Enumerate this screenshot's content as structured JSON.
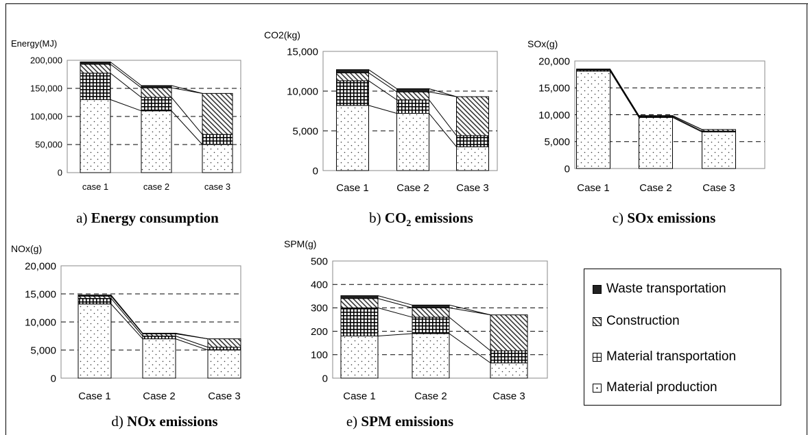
{
  "legend": [
    {
      "key": "waste",
      "label": "Waste transportation",
      "pattern": "solid-dark"
    },
    {
      "key": "construction",
      "label": "Construction",
      "pattern": "diagonal-hatch"
    },
    {
      "key": "transport",
      "label": "Material transportation",
      "pattern": "grid"
    },
    {
      "key": "production",
      "label": "Material production",
      "pattern": "dots"
    }
  ],
  "chart_data": [
    {
      "type": "bar",
      "stacked": true,
      "ylabel": "Energy(MJ)",
      "caption_prefix": "a) ",
      "caption_bold": "Energy consumption",
      "categories": [
        "case 1",
        "case 2",
        "case 3"
      ],
      "ylim": [
        0,
        200000
      ],
      "yticks": [
        "0",
        "50,000",
        "100,000",
        "150,000",
        "200,000"
      ],
      "series": [
        {
          "name": "Material production",
          "values": [
            130000,
            110000,
            50000
          ]
        },
        {
          "name": "Material transportation",
          "values": [
            47000,
            24000,
            18000
          ]
        },
        {
          "name": "Construction",
          "values": [
            16000,
            17000,
            73000
          ]
        },
        {
          "name": "Waste transportation",
          "values": [
            4000,
            4000,
            0
          ]
        }
      ]
    },
    {
      "type": "bar",
      "stacked": true,
      "ylabel": "CO2(kg)",
      "caption_prefix": "b) ",
      "caption_bold": "CO2 emissions",
      "categories": [
        "Case 1",
        "Case 2",
        "Case 3"
      ],
      "ylim": [
        0,
        15000
      ],
      "yticks": [
        "0",
        "5,000",
        "10,000",
        "15,000"
      ],
      "series": [
        {
          "name": "Material production",
          "values": [
            8200,
            7200,
            3000
          ]
        },
        {
          "name": "Material transportation",
          "values": [
            3100,
            1700,
            1400
          ]
        },
        {
          "name": "Construction",
          "values": [
            1000,
            1000,
            4900
          ]
        },
        {
          "name": "Waste transportation",
          "values": [
            400,
            400,
            0
          ]
        }
      ]
    },
    {
      "type": "bar",
      "stacked": true,
      "ylabel": "SOx(g)",
      "caption_prefix": "c) ",
      "caption_bold": "SOx emissions",
      "categories": [
        "Case 1",
        "Case 2",
        "Case 3"
      ],
      "ylim": [
        0,
        20000
      ],
      "yticks": [
        "0",
        "5,000",
        "10,000",
        "15,000",
        "20,000"
      ],
      "series": [
        {
          "name": "Material production",
          "values": [
            18100,
            9500,
            6800
          ]
        },
        {
          "name": "Material transportation",
          "values": [
            200,
            150,
            150
          ]
        },
        {
          "name": "Construction",
          "values": [
            100,
            150,
            300
          ]
        },
        {
          "name": "Waste transportation",
          "values": [
            100,
            50,
            0
          ]
        }
      ]
    },
    {
      "type": "bar",
      "stacked": true,
      "ylabel": "NOx(g)",
      "caption_prefix": "d) ",
      "caption_bold": "NOx emissions",
      "categories": [
        "Case 1",
        "Case 2",
        "Case 3"
      ],
      "ylim": [
        0,
        20000
      ],
      "yticks": [
        "0",
        "5,000",
        "10,000",
        "15,000",
        "20,000"
      ],
      "series": [
        {
          "name": "Material production",
          "values": [
            13200,
            7000,
            5000
          ]
        },
        {
          "name": "Material transportation",
          "values": [
            1000,
            500,
            500
          ]
        },
        {
          "name": "Construction",
          "values": [
            400,
            400,
            1500
          ]
        },
        {
          "name": "Waste transportation",
          "values": [
            200,
            100,
            0
          ]
        }
      ]
    },
    {
      "type": "bar",
      "stacked": true,
      "ylabel": "SPM(g)",
      "caption_prefix": "e) ",
      "caption_bold": "SPM emissions",
      "categories": [
        "Case 1",
        "Case 2",
        "Case 3"
      ],
      "ylim": [
        0,
        500
      ],
      "yticks": [
        "0",
        "100",
        "200",
        "300",
        "400",
        "500"
      ],
      "series": [
        {
          "name": "Material production",
          "values": [
            180,
            190,
            65
          ]
        },
        {
          "name": "Material transportation",
          "values": [
            120,
            70,
            52
          ]
        },
        {
          "name": "Construction",
          "values": [
            40,
            40,
            153
          ]
        },
        {
          "name": "Waste transportation",
          "values": [
            12,
            12,
            0
          ]
        }
      ]
    }
  ]
}
